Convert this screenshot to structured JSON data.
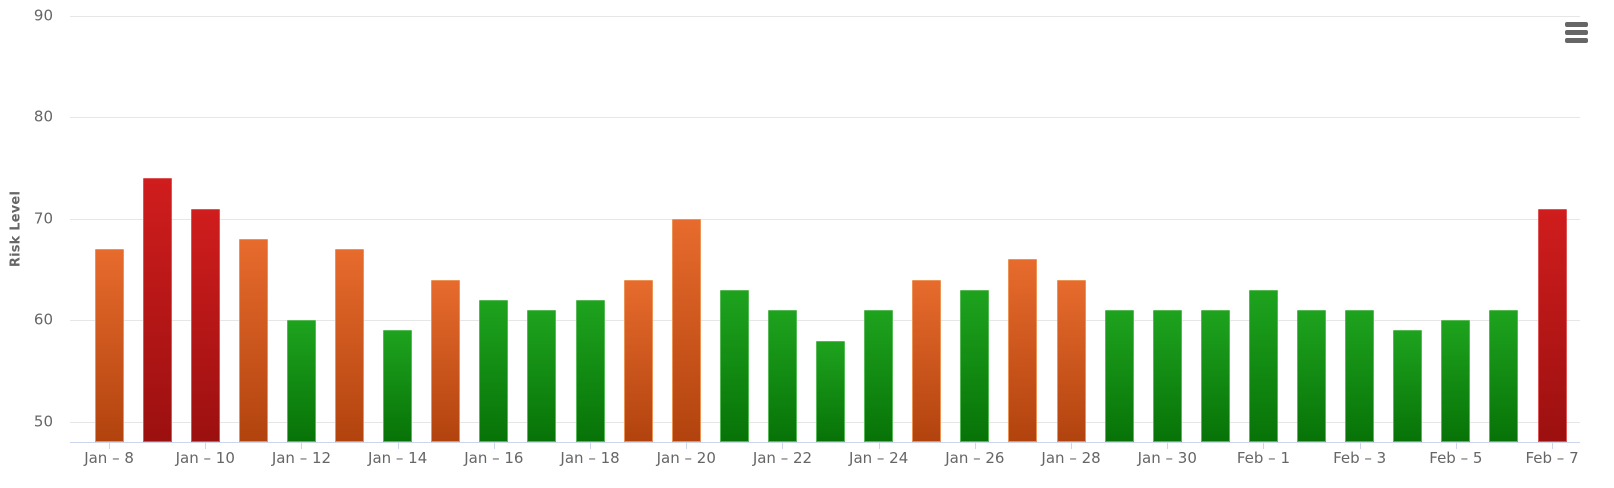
{
  "chart": {
    "y_axis_title": "Risk Level",
    "context_menu_icon": "hamburger-icon"
  },
  "colors": {
    "background": "#ffffff",
    "gridline": "#e6e6e6",
    "axis_line": "#ccd6eb",
    "tick_label": "#666666",
    "axis_title": "#666666",
    "menu_icon": "#666666"
  },
  "chart_data": {
    "type": "bar",
    "title": "",
    "xlabel": "",
    "ylabel": "Risk Level",
    "ylim": [
      48,
      90
    ],
    "yticks": [
      50,
      60,
      70,
      80,
      90
    ],
    "grid": "on",
    "legend": "none",
    "x_tick_label_every": 2,
    "categories": [
      "Jan – 8",
      "Jan – 9",
      "Jan – 10",
      "Jan – 11",
      "Jan – 12",
      "Jan – 13",
      "Jan – 14",
      "Jan – 15",
      "Jan – 16",
      "Jan – 17",
      "Jan – 18",
      "Jan – 19",
      "Jan – 20",
      "Jan – 21",
      "Jan – 22",
      "Jan – 23",
      "Jan – 24",
      "Jan – 25",
      "Jan – 26",
      "Jan – 27",
      "Jan – 28",
      "Jan – 29",
      "Jan – 30",
      "Jan – 31",
      "Feb – 1",
      "Feb – 2",
      "Feb – 3",
      "Feb – 4",
      "Feb – 5",
      "Feb – 6",
      "Feb – 7"
    ],
    "values": [
      67,
      74,
      71,
      68,
      60,
      67,
      59,
      64,
      62,
      61,
      62,
      64,
      70,
      63,
      61,
      58,
      61,
      64,
      63,
      66,
      64,
      61,
      61,
      61,
      63,
      61,
      61,
      59,
      60,
      61,
      71
    ],
    "bar_colors": [
      "orange",
      "red",
      "red",
      "orange",
      "green",
      "orange",
      "green",
      "orange",
      "green",
      "green",
      "green",
      "orange",
      "orange",
      "green",
      "green",
      "green",
      "green",
      "orange",
      "green",
      "orange",
      "orange",
      "green",
      "green",
      "green",
      "green",
      "green",
      "green",
      "green",
      "green",
      "green",
      "red"
    ],
    "color_scale": {
      "green": {
        "top": "#1ea31e",
        "bottom": "#077307",
        "border": "#56b956"
      },
      "orange": {
        "top": "#e76b2d",
        "bottom": "#b2430e",
        "border": "#ec9255"
      },
      "red": {
        "top": "#d01d1d",
        "bottom": "#9c1010",
        "border": "#dd5454"
      }
    }
  }
}
